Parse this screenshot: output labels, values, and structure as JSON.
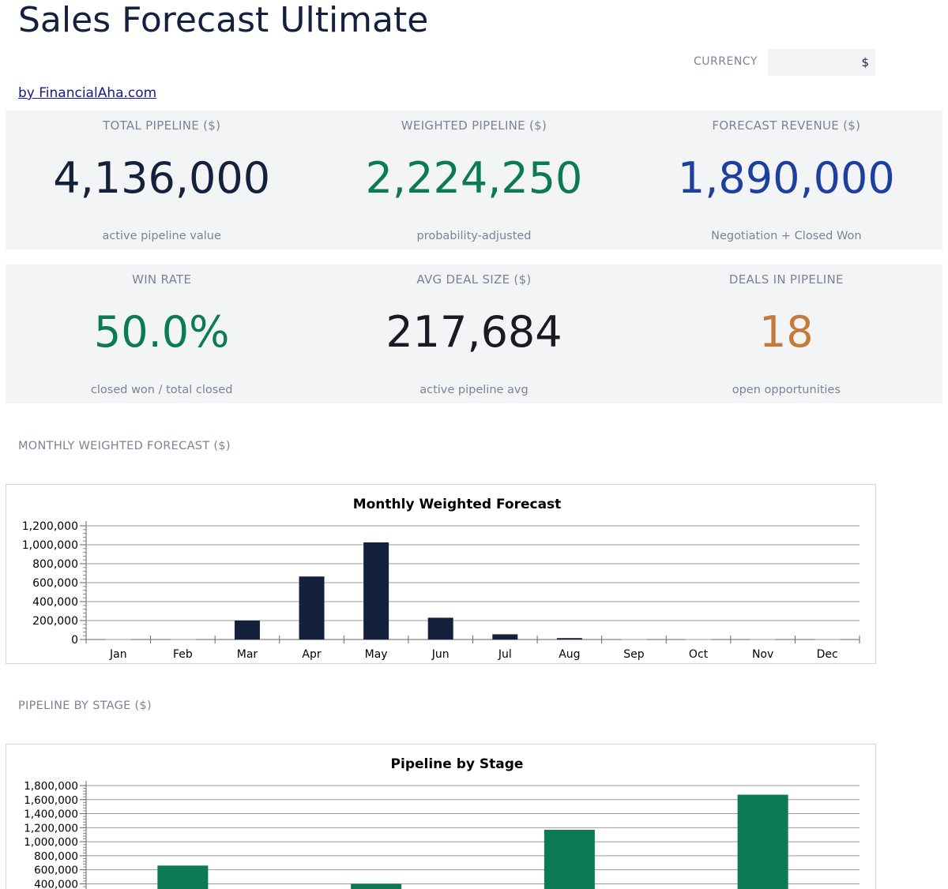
{
  "header": {
    "title": "Sales Forecast Ultimate",
    "byline": "by FinancialAha.com",
    "currency_label": "CURRENCY",
    "currency_value": "$"
  },
  "kpis": [
    {
      "label": "TOTAL PIPELINE ($)",
      "value": "4,136,000",
      "sub": "active pipeline value",
      "color": "#14213d"
    },
    {
      "label": "WEIGHTED PIPELINE ($)",
      "value": "2,224,250",
      "sub": "probability-adjusted",
      "color": "#0b7a55"
    },
    {
      "label": "FORECAST REVENUE ($)",
      "value": "1,890,000",
      "sub": "Negotiation + Closed Won",
      "color": "#1f3f9e"
    },
    {
      "label": "WIN RATE",
      "value": "50.0%",
      "sub": "closed won / total closed",
      "color": "#0b7a55"
    },
    {
      "label": "AVG DEAL SIZE ($)",
      "value": "217,684",
      "sub": "active pipeline avg",
      "color": "#1a1a24"
    },
    {
      "label": "DEALS IN PIPELINE",
      "value": "18",
      "sub": "open opportunities",
      "color": "#c47a3a"
    }
  ],
  "sections": {
    "monthly": "MONTHLY WEIGHTED FORECAST ($)",
    "stage": "PIPELINE BY STAGE ($)"
  },
  "chart_data": [
    {
      "type": "bar",
      "title": "Monthly Weighted Forecast",
      "categories": [
        "Jan",
        "Feb",
        "Mar",
        "Apr",
        "May",
        "Jun",
        "Jul",
        "Aug",
        "Sep",
        "Oct",
        "Nov",
        "Dec"
      ],
      "values": [
        0,
        0,
        200000,
        665000,
        1025000,
        230000,
        55000,
        15000,
        0,
        0,
        0,
        0
      ],
      "ylim": [
        0,
        1200000
      ],
      "yticks": [
        0,
        200000,
        400000,
        600000,
        800000,
        1000000,
        1200000
      ],
      "ytick_labels": [
        "0",
        "200,000",
        "400,000",
        "600,000",
        "800,000",
        "1,000,000",
        "1,200,000"
      ],
      "color": "#14213d",
      "grid": true
    },
    {
      "type": "bar",
      "title": "Pipeline by Stage",
      "categories": [
        "",
        "",
        "",
        ""
      ],
      "values": [
        660000,
        400000,
        1170000,
        1670000
      ],
      "ylim": [
        0,
        1800000
      ],
      "yticks": [
        400000,
        600000,
        800000,
        1000000,
        1200000,
        1400000,
        1600000,
        1800000
      ],
      "ytick_labels": [
        "400,000",
        "600,000",
        "800,000",
        "1,000,000",
        "1,200,000",
        "1,400,000",
        "1,600,000",
        "1,800,000"
      ],
      "color": "#0b7a55",
      "grid": true
    }
  ]
}
